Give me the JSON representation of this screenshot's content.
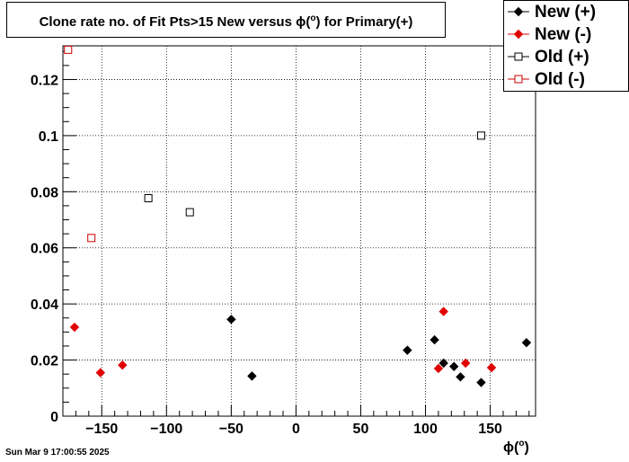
{
  "title": {
    "prefix": "Clone rate no. of Fit Pts>15 New versus ",
    "phi": "ϕ",
    "lparen": "(",
    "degree": "o",
    "suffix": ") for Primary(+)"
  },
  "footer": "Sun Mar  9 17:00:55 2025",
  "chart_data": {
    "type": "scatter",
    "xlabel": {
      "phi": "ϕ",
      "lparen": "(",
      "degree": "o",
      "rparen": ")"
    },
    "ylabel": "",
    "xlim": [
      -180,
      185
    ],
    "ylim": [
      0,
      0.132
    ],
    "x_ticks": [
      -150,
      -100,
      -50,
      0,
      50,
      100,
      150
    ],
    "x_tick_labels": [
      "−150",
      "−100",
      "−50",
      "0",
      "50",
      "100",
      "150"
    ],
    "y_ticks": [
      0,
      0.02,
      0.04,
      0.06,
      0.08,
      0.1,
      0.12
    ],
    "y_tick_labels": [
      "0",
      "0.02",
      "0.04",
      "0.06",
      "0.08",
      "0.1",
      "0.12"
    ],
    "grid": true,
    "legend_position": "top-right",
    "series": [
      {
        "name": "New (+)",
        "color": "#000000",
        "marker": "filled-diamond",
        "x": [
          -50,
          -34,
          86,
          107,
          114,
          122,
          127,
          143,
          178
        ],
        "y": [
          0.0345,
          0.0143,
          0.0235,
          0.0272,
          0.0189,
          0.0177,
          0.014,
          0.012,
          0.0262
        ]
      },
      {
        "name": "New (-)",
        "color": "#e00000",
        "marker": "filled-diamond",
        "x": [
          -171,
          -151,
          -134,
          110,
          114,
          131,
          151
        ],
        "y": [
          0.0317,
          0.0155,
          0.0182,
          0.017,
          0.0373,
          0.0189,
          0.0173
        ]
      },
      {
        "name": "Old (+)",
        "color": "#000000",
        "marker": "open-square",
        "x": [
          -114,
          -82,
          143
        ],
        "y": [
          0.0777,
          0.0727,
          0.1
        ]
      },
      {
        "name": "Old (-)",
        "color": "#cc0000",
        "marker": "open-square",
        "x": [
          -176,
          -158
        ],
        "y": [
          0.1306,
          0.0635
        ]
      }
    ]
  }
}
